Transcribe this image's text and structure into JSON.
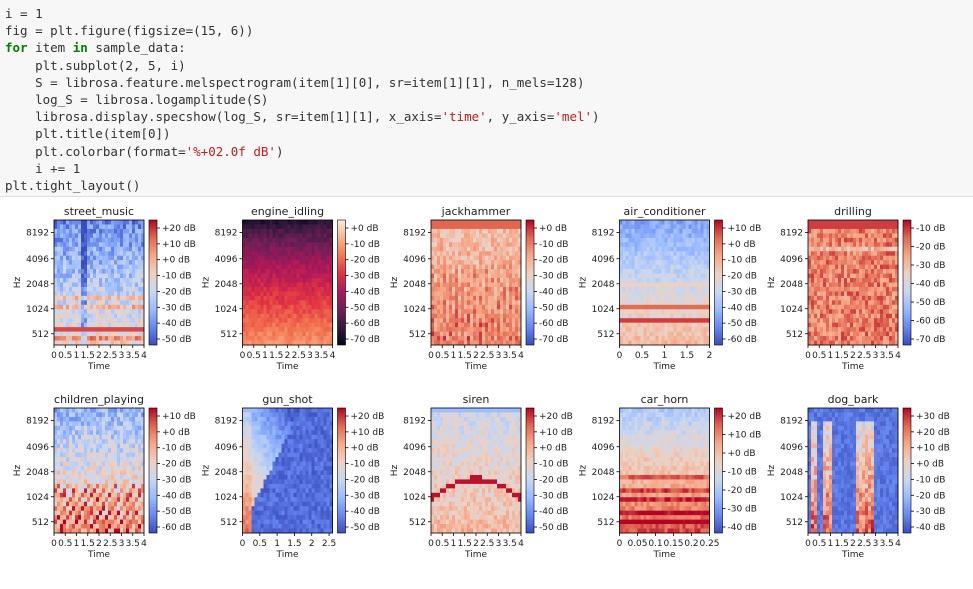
{
  "code_lines": [
    "i = 1",
    "fig = plt.figure(figsize=(15, 6))",
    "for item in sample_data:",
    "    plt.subplot(2, 5, i)",
    "    S = librosa.feature.melspectrogram(item[1][0], sr=item[1][1], n_mels=128)",
    "    log_S = librosa.logamplitude(S)",
    "    librosa.display.specshow(log_S, sr=item[1][1], x_axis='time', y_axis='mel')",
    "    plt.title(item[0])",
    "    plt.colorbar(format='%+02.0f dB')",
    "    i += 1",
    "plt.tight_layout()"
  ],
  "colormaps": {
    "coolwarm": [
      "#3b4cc0",
      "#6788ee",
      "#9abbff",
      "#c9d7f0",
      "#edd1c2",
      "#f7a889",
      "#e26952",
      "#b40426"
    ],
    "rocket": [
      "#03051a",
      "#35193e",
      "#701f57",
      "#ad1759",
      "#e13342",
      "#f37651",
      "#f6b48f",
      "#faebdd"
    ]
  },
  "chart_data": [
    {
      "type": "heatmap",
      "title": "street_music",
      "xlabel": "Time",
      "ylabel": "Hz",
      "y_ticks": [
        "8192",
        "4096",
        "2048",
        "1024",
        "512"
      ],
      "x_ticks": [
        "0",
        "0.5",
        "1",
        "1.5",
        "2",
        "2.5",
        "3",
        "3.5",
        "4"
      ],
      "xlim": [
        0,
        4
      ],
      "colorbar_ticks": [
        "+20 dB",
        "+10 dB",
        "+0 dB",
        "-10 dB",
        "-20 dB",
        "-30 dB",
        "-40 dB",
        "-50 dB"
      ],
      "colormap": "coolwarm",
      "pattern": "music"
    },
    {
      "type": "heatmap",
      "title": "engine_idling",
      "xlabel": "Time",
      "ylabel": "Hz",
      "y_ticks": [
        "8192",
        "4096",
        "2048",
        "1024",
        "512"
      ],
      "x_ticks": [
        "0",
        "0.5",
        "1",
        "1.5",
        "2",
        "2.5",
        "3",
        "3.5",
        "4"
      ],
      "xlim": [
        0,
        4
      ],
      "colorbar_ticks": [
        "+0 dB",
        "-10 dB",
        "-20 dB",
        "-30 dB",
        "-40 dB",
        "-50 dB",
        "-60 dB",
        "-70 dB"
      ],
      "colormap": "rocket",
      "pattern": "engine"
    },
    {
      "type": "heatmap",
      "title": "jackhammer",
      "xlabel": "Time",
      "ylabel": "Hz",
      "y_ticks": [
        "8192",
        "4096",
        "2048",
        "1024",
        "512"
      ],
      "x_ticks": [
        "0",
        "0.5",
        "1",
        "1.5",
        "2",
        "2.5",
        "3",
        "3.5",
        "4"
      ],
      "xlim": [
        0,
        4
      ],
      "colorbar_ticks": [
        "+0 dB",
        "-10 dB",
        "-20 dB",
        "-30 dB",
        "-40 dB",
        "-50 dB",
        "-60 dB",
        "-70 dB"
      ],
      "colormap": "coolwarm",
      "pattern": "jackhammer"
    },
    {
      "type": "heatmap",
      "title": "air_conditioner",
      "xlabel": "Time",
      "ylabel": "Hz",
      "y_ticks": [
        "8192",
        "4096",
        "2048",
        "1024",
        "512"
      ],
      "x_ticks": [
        "0",
        "0.5",
        "1",
        "1.5",
        "2"
      ],
      "xlim": [
        0,
        2
      ],
      "colorbar_ticks": [
        "+10 dB",
        "+0 dB",
        "-10 dB",
        "-20 dB",
        "-30 dB",
        "-40 dB",
        "-50 dB",
        "-60 dB"
      ],
      "colormap": "coolwarm",
      "pattern": "aircon"
    },
    {
      "type": "heatmap",
      "title": "drilling",
      "xlabel": "Time",
      "ylabel": "Hz",
      "y_ticks": [
        "8192",
        "4096",
        "2048",
        "1024",
        "512"
      ],
      "x_ticks": [
        "0",
        "0.5",
        "1",
        "1.5",
        "2",
        "2.5",
        "3",
        "3.5",
        "4"
      ],
      "xlim": [
        0,
        4
      ],
      "colorbar_ticks": [
        "-10 dB",
        "-20 dB",
        "-30 dB",
        "-40 dB",
        "-50 dB",
        "-60 dB",
        "-70 dB"
      ],
      "colormap": "coolwarm",
      "pattern": "drilling"
    },
    {
      "type": "heatmap",
      "title": "children_playing",
      "xlabel": "Time",
      "ylabel": "Hz",
      "y_ticks": [
        "8192",
        "4096",
        "2048",
        "1024",
        "512"
      ],
      "x_ticks": [
        "0",
        "0.5",
        "1",
        "1.5",
        "2",
        "2.5",
        "3",
        "3.5",
        "4"
      ],
      "xlim": [
        0,
        4
      ],
      "colorbar_ticks": [
        "+10 dB",
        "+0 dB",
        "-10 dB",
        "-20 dB",
        "-30 dB",
        "-40 dB",
        "-50 dB",
        "-60 dB"
      ],
      "colormap": "coolwarm",
      "pattern": "children"
    },
    {
      "type": "heatmap",
      "title": "gun_shot",
      "xlabel": "Time",
      "ylabel": "Hz",
      "y_ticks": [
        "8192",
        "4096",
        "2048",
        "1024",
        "512"
      ],
      "x_ticks": [
        "0",
        "0.5",
        "1",
        "1.5",
        "2",
        "2.5"
      ],
      "xlim": [
        0,
        2.6
      ],
      "colorbar_ticks": [
        "+20 dB",
        "+10 dB",
        "+0 dB",
        "-10 dB",
        "-20 dB",
        "-30 dB",
        "-40 dB",
        "-50 dB"
      ],
      "colormap": "coolwarm",
      "pattern": "gunshot"
    },
    {
      "type": "heatmap",
      "title": "siren",
      "xlabel": "Time",
      "ylabel": "Hz",
      "y_ticks": [
        "8192",
        "4096",
        "2048",
        "1024",
        "512"
      ],
      "x_ticks": [
        "0",
        "0.5",
        "1",
        "1.5",
        "2",
        "2.5",
        "3",
        "3.5",
        "4"
      ],
      "xlim": [
        0,
        4
      ],
      "colorbar_ticks": [
        "+20 dB",
        "+10 dB",
        "+0 dB",
        "-10 dB",
        "-20 dB",
        "-30 dB",
        "-40 dB",
        "-50 dB"
      ],
      "colormap": "coolwarm",
      "pattern": "siren"
    },
    {
      "type": "heatmap",
      "title": "car_horn",
      "xlabel": "Time",
      "ylabel": "Hz",
      "y_ticks": [
        "8192",
        "4096",
        "2048",
        "1024",
        "512"
      ],
      "x_ticks": [
        "0",
        "0.05",
        "0.1",
        "0.15",
        "0.2",
        "0.25"
      ],
      "xlim": [
        0,
        0.25
      ],
      "colorbar_ticks": [
        "+20 dB",
        "+10 dB",
        "+0 dB",
        "-10 dB",
        "-20 dB",
        "-30 dB",
        "-40 dB"
      ],
      "colormap": "coolwarm",
      "pattern": "carhorn"
    },
    {
      "type": "heatmap",
      "title": "dog_bark",
      "xlabel": "Time",
      "ylabel": "Hz",
      "y_ticks": [
        "8192",
        "4096",
        "2048",
        "1024",
        "512"
      ],
      "x_ticks": [
        "0",
        "0.5",
        "1",
        "1.5",
        "2",
        "2.5",
        "3",
        "3.5",
        "4"
      ],
      "xlim": [
        0,
        4
      ],
      "colorbar_ticks": [
        "+30 dB",
        "+20 dB",
        "+10 dB",
        "+0 dB",
        "-10 dB",
        "-20 dB",
        "-30 dB",
        "-40 dB"
      ],
      "colormap": "coolwarm",
      "pattern": "dogbark"
    }
  ]
}
